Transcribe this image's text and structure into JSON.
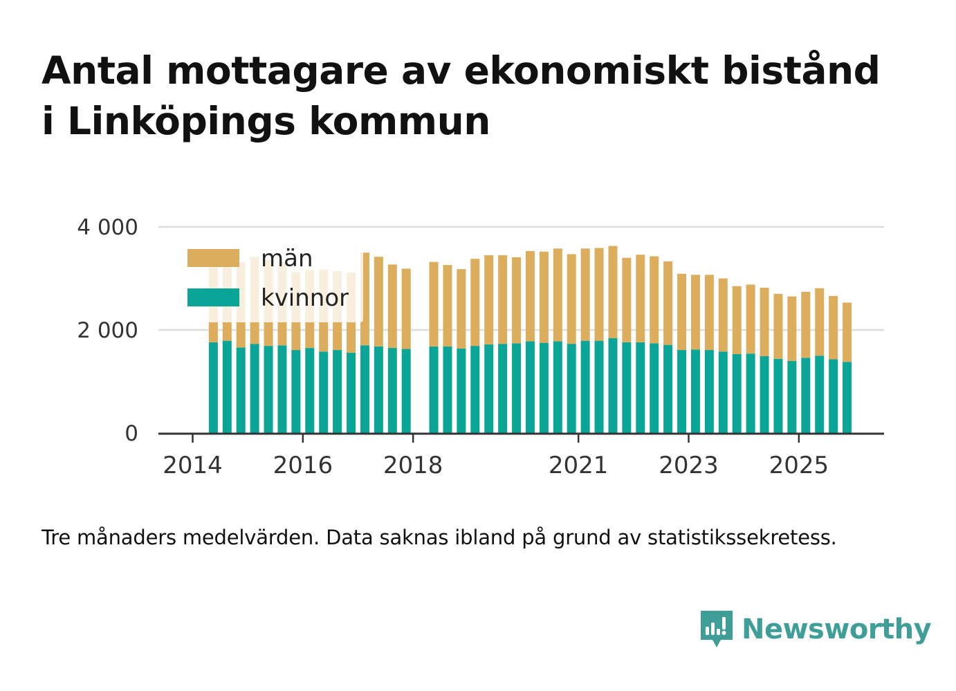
{
  "title_lines": [
    "Antal mottagare av ekonomiskt bistånd",
    "i Linköpings kommun"
  ],
  "note": "Tre månaders medelvärden. Data saknas ibland på grund av statistikssekretess.",
  "brand": {
    "name": "Newsworthy",
    "icon": "newsworthy-logo-icon",
    "color": "#3f9e97"
  },
  "colors": {
    "man": "#dcad5c",
    "kvinnor": "#0aa596",
    "grid": "#dddddd",
    "axis": "#333333",
    "text": "#333333"
  },
  "chart_data": {
    "type": "bar",
    "stacked": true,
    "x_unit": "quarter",
    "categories": [
      "2014 Q2",
      "2014 Q3",
      "2014 Q4",
      "2015 Q1",
      "2015 Q2",
      "2015 Q3",
      "2015 Q4",
      "2016 Q1",
      "2016 Q2",
      "2016 Q3",
      "2016 Q4",
      "2017 Q1",
      "2017 Q2",
      "2017 Q3",
      "2017 Q4",
      "2018 Q1",
      "2018 Q2",
      "2018 Q3",
      "2018 Q4",
      "2019 Q1",
      "2019 Q2",
      "2019 Q3",
      "2019 Q4",
      "2020 Q1",
      "2020 Q2",
      "2020 Q3",
      "2020 Q4",
      "2021 Q1",
      "2021 Q2",
      "2021 Q3",
      "2021 Q4",
      "2022 Q1",
      "2022 Q2",
      "2022 Q3",
      "2022 Q4",
      "2023 Q1",
      "2023 Q2",
      "2023 Q3",
      "2023 Q4",
      "2024 Q1",
      "2024 Q2",
      "2024 Q3",
      "2024 Q4",
      "2025 Q1",
      "2025 Q2",
      "2025 Q3",
      "2025 Q4"
    ],
    "series": [
      {
        "name": "kvinnor",
        "values": [
          1760,
          1790,
          1660,
          1730,
          1690,
          1700,
          1610,
          1650,
          1580,
          1610,
          1560,
          1700,
          1680,
          1650,
          1630,
          null,
          1680,
          1680,
          1640,
          1690,
          1720,
          1730,
          1740,
          1780,
          1750,
          1780,
          1730,
          1790,
          1790,
          1840,
          1760,
          1760,
          1740,
          1710,
          1610,
          1620,
          1610,
          1580,
          1530,
          1540,
          1490,
          1440,
          1400,
          1460,
          1500,
          1430,
          1380
        ]
      },
      {
        "name": "män",
        "values": [
          1560,
          1620,
          1650,
          1690,
          1670,
          1620,
          1510,
          1510,
          1590,
          1530,
          1550,
          1800,
          1740,
          1620,
          1560,
          null,
          1640,
          1580,
          1540,
          1690,
          1730,
          1720,
          1670,
          1750,
          1770,
          1800,
          1740,
          1790,
          1800,
          1790,
          1640,
          1700,
          1690,
          1620,
          1480,
          1450,
          1460,
          1420,
          1320,
          1340,
          1330,
          1260,
          1250,
          1280,
          1310,
          1230,
          1150
        ]
      }
    ],
    "legend": {
      "entries": [
        "män",
        "kvinnor"
      ],
      "position": "top-left"
    },
    "x_ticks": [
      "2014",
      "2016",
      "2018",
      "2021",
      "2023",
      "2025"
    ],
    "y_ticks": [
      "0",
      "2 000",
      "4 000"
    ],
    "ylim": [
      0,
      4000
    ],
    "grid": true,
    "xlabel": "",
    "ylabel": ""
  }
}
